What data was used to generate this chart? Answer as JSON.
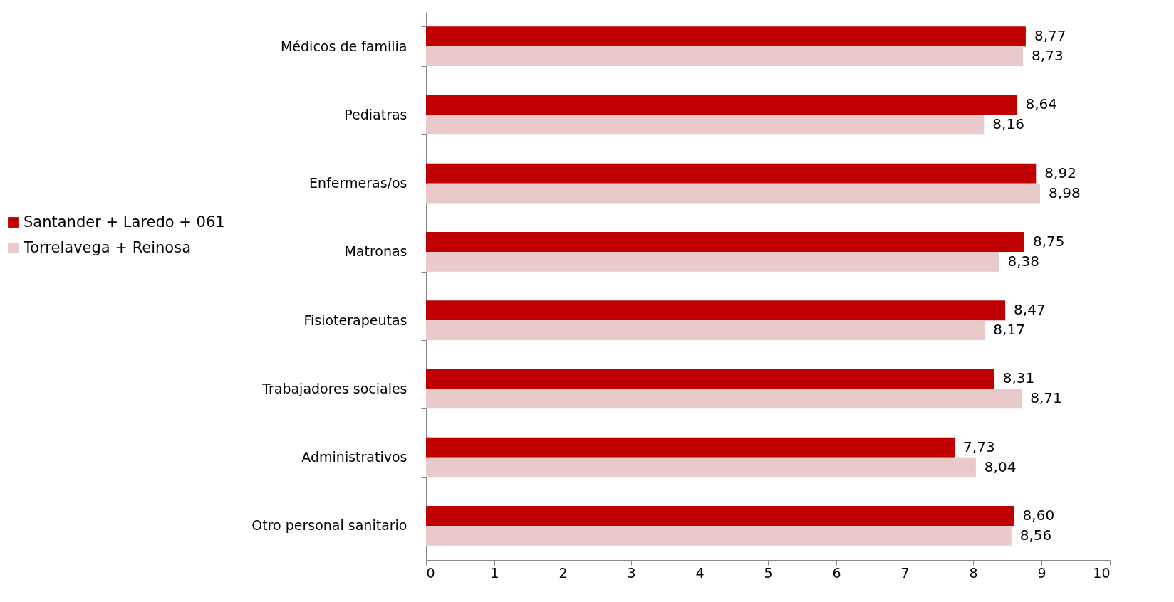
{
  "chart_data": {
    "type": "bar",
    "orientation": "horizontal",
    "categories": [
      "Médicos de familia",
      "Pediatras",
      "Enfermeras/os",
      "Matronas",
      "Fisioterapeutas",
      "Trabajadores sociales",
      "Administrativos",
      "Otro personal sanitario"
    ],
    "series": [
      {
        "name": "Santander + Laredo + 061",
        "color": "#c00000",
        "values": [
          8.77,
          8.64,
          8.92,
          8.75,
          8.47,
          8.31,
          7.73,
          8.6
        ],
        "value_labels": [
          "8,77",
          "8,64",
          "8,92",
          "8,75",
          "8,47",
          "8,31",
          "7,73",
          "8,60"
        ]
      },
      {
        "name": "Torrelavega + Reinosa",
        "color": "#e8caca",
        "values": [
          8.73,
          8.16,
          8.98,
          8.38,
          8.17,
          8.71,
          8.04,
          8.56
        ],
        "value_labels": [
          "8,73",
          "8,16",
          "8,98",
          "8,38",
          "8,17",
          "8,71",
          "8,04",
          "8,56"
        ]
      }
    ],
    "xlim": [
      0,
      10
    ],
    "xticks": [
      0,
      1,
      2,
      3,
      4,
      5,
      6,
      7,
      8,
      9,
      10
    ],
    "grid": false,
    "legend": "left"
  }
}
